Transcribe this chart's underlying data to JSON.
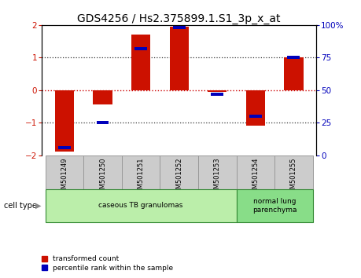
{
  "title": "GDS4256 / Hs2.375899.1.S1_3p_x_at",
  "samples": [
    "GSM501249",
    "GSM501250",
    "GSM501251",
    "GSM501252",
    "GSM501253",
    "GSM501254",
    "GSM501255"
  ],
  "red_values": [
    -1.9,
    -0.45,
    1.7,
    1.95,
    -0.05,
    -1.1,
    1.0
  ],
  "blue_values": [
    6,
    25,
    82,
    98,
    47,
    30,
    75
  ],
  "ylim_left": [
    -2,
    2
  ],
  "ylim_right": [
    0,
    100
  ],
  "yticks_left": [
    -2,
    -1,
    0,
    1,
    2
  ],
  "yticks_right": [
    0,
    25,
    50,
    75,
    100
  ],
  "ytick_labels_right": [
    "0",
    "25",
    "50",
    "75",
    "100%"
  ],
  "red_color": "#cc1100",
  "blue_color": "#0000bb",
  "bar_width": 0.5,
  "group1_indices": [
    0,
    1,
    2,
    3,
    4
  ],
  "group2_indices": [
    5,
    6
  ],
  "group1_label": "caseous TB granulomas",
  "group2_label": "normal lung\nparenchyma",
  "group1_color": "#bbeeaa",
  "group2_color": "#88dd88",
  "group_border_color": "#338833",
  "cell_type_label": "cell type",
  "legend_red": "transformed count",
  "legend_blue": "percentile rank within the sample",
  "zero_line_color": "#cc0000",
  "dotted_line_color": "#333333",
  "title_fontsize": 10,
  "tick_bg_color": "#cccccc",
  "tick_border_color": "#999999"
}
